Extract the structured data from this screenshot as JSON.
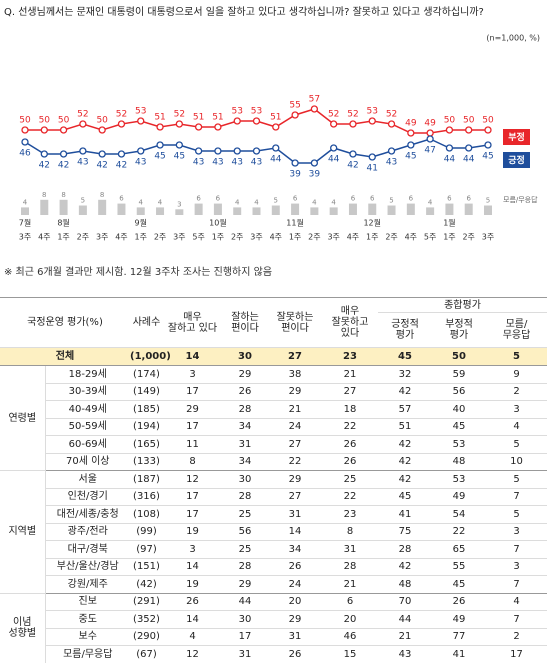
{
  "chart_data": {
    "type": "line",
    "title": "Q. 선생님께서는 문재인 대통령이 대통령으로서 일을 잘하고 있다고 생각하십니까? 잘못하고 있다고 생각하십니까?",
    "subtitle": "(n=1,000, %)",
    "months": [
      "7월",
      null,
      "8월",
      null,
      null,
      null,
      "9월",
      null,
      null,
      null,
      "10월",
      null,
      null,
      null,
      "11월",
      null,
      null,
      null,
      "12월",
      null,
      null,
      null,
      "1월",
      null,
      null
    ],
    "categories": [
      "3주",
      "4주",
      "1주",
      "2주",
      "3주",
      "4주",
      "1주",
      "2주",
      "3주",
      "5주",
      "1주",
      "2주",
      "3주",
      "4주",
      "1주",
      "2주",
      "3주",
      "4주",
      "1주",
      "2주",
      "4주",
      "5주",
      "1주",
      "2주",
      "3주"
    ],
    "series": [
      {
        "name": "부정",
        "color": "#e8262a",
        "values": [
          50,
          50,
          50,
          52,
          50,
          52,
          53,
          51,
          52,
          51,
          51,
          53,
          53,
          51,
          55,
          57,
          52,
          52,
          53,
          52,
          49,
          49,
          50,
          50,
          50
        ]
      },
      {
        "name": "긍정",
        "color": "#1f4e9c",
        "values": [
          46,
          42,
          42,
          43,
          42,
          42,
          43,
          45,
          45,
          43,
          43,
          43,
          43,
          44,
          39,
          39,
          44,
          42,
          41,
          43,
          45,
          47,
          44,
          44,
          45
        ]
      },
      {
        "name": "모름/무응답",
        "color": "#c8c8c8",
        "type": "bar",
        "values": [
          4,
          8,
          8,
          5,
          8,
          6,
          4,
          4,
          3,
          6,
          6,
          4,
          4,
          5,
          6,
          4,
          4,
          6,
          6,
          5,
          6,
          4,
          6,
          6,
          5
        ]
      }
    ]
  },
  "note": "※ 최근 6개월 결과만 제시함. 12월 3주차 조사는 진행하지 않음",
  "table": {
    "header": {
      "label": "국정운영 평가(%)",
      "n": "사례수",
      "cols": [
        "매우\n잘하고 있다",
        "잘하는\n편이다",
        "잘못하는\n편이다",
        "매우\n잘못하고\n있다"
      ],
      "group": "종합평가",
      "subcols": [
        "긍정적\n평가",
        "부정적\n평가",
        "모름/\n무응답"
      ]
    },
    "total": {
      "label": "전체",
      "n": "(1,000)",
      "cells": [
        14,
        30,
        27,
        23,
        45,
        50,
        5
      ]
    },
    "groups": [
      {
        "label": "연령별",
        "rows": [
          {
            "label": "18-29세",
            "n": "(174)",
            "cells": [
              3,
              29,
              38,
              21,
              32,
              59,
              9
            ]
          },
          {
            "label": "30-39세",
            "n": "(149)",
            "cells": [
              17,
              26,
              29,
              27,
              42,
              56,
              2
            ]
          },
          {
            "label": "40-49세",
            "n": "(185)",
            "cells": [
              29,
              28,
              21,
              18,
              57,
              40,
              3
            ]
          },
          {
            "label": "50-59세",
            "n": "(194)",
            "cells": [
              17,
              34,
              24,
              22,
              51,
              45,
              4
            ]
          },
          {
            "label": "60-69세",
            "n": "(165)",
            "cells": [
              11,
              31,
              27,
              26,
              42,
              53,
              5
            ]
          },
          {
            "label": "70세 이상",
            "n": "(133)",
            "cells": [
              8,
              34,
              22,
              26,
              42,
              48,
              10
            ]
          }
        ]
      },
      {
        "label": "지역별",
        "rows": [
          {
            "label": "서울",
            "n": "(187)",
            "cells": [
              12,
              30,
              29,
              25,
              42,
              53,
              5
            ]
          },
          {
            "label": "인천/경기",
            "n": "(316)",
            "cells": [
              17,
              28,
              27,
              22,
              45,
              49,
              7
            ]
          },
          {
            "label": "대전/세종/충청",
            "n": "(108)",
            "cells": [
              17,
              25,
              31,
              23,
              41,
              54,
              5
            ]
          },
          {
            "label": "광주/전라",
            "n": "(99)",
            "cells": [
              19,
              56,
              14,
              8,
              75,
              22,
              3
            ]
          },
          {
            "label": "대구/경북",
            "n": "(97)",
            "cells": [
              3,
              25,
              34,
              31,
              28,
              65,
              7
            ]
          },
          {
            "label": "부산/울산/경남",
            "n": "(151)",
            "cells": [
              14,
              28,
              26,
              28,
              42,
              55,
              3
            ]
          },
          {
            "label": "강원/제주",
            "n": "(42)",
            "cells": [
              19,
              29,
              24,
              21,
              48,
              45,
              7
            ]
          }
        ]
      },
      {
        "label": "이념\n성향별",
        "rows": [
          {
            "label": "진보",
            "n": "(291)",
            "cells": [
              26,
              44,
              20,
              6,
              70,
              26,
              4
            ]
          },
          {
            "label": "중도",
            "n": "(352)",
            "cells": [
              14,
              30,
              29,
              20,
              44,
              49,
              7
            ]
          },
          {
            "label": "보수",
            "n": "(290)",
            "cells": [
              4,
              17,
              31,
              46,
              21,
              77,
              2
            ]
          },
          {
            "label": "모름/무응답",
            "n": "(67)",
            "cells": [
              12,
              31,
              26,
              15,
              43,
              41,
              17
            ]
          }
        ]
      }
    ]
  }
}
